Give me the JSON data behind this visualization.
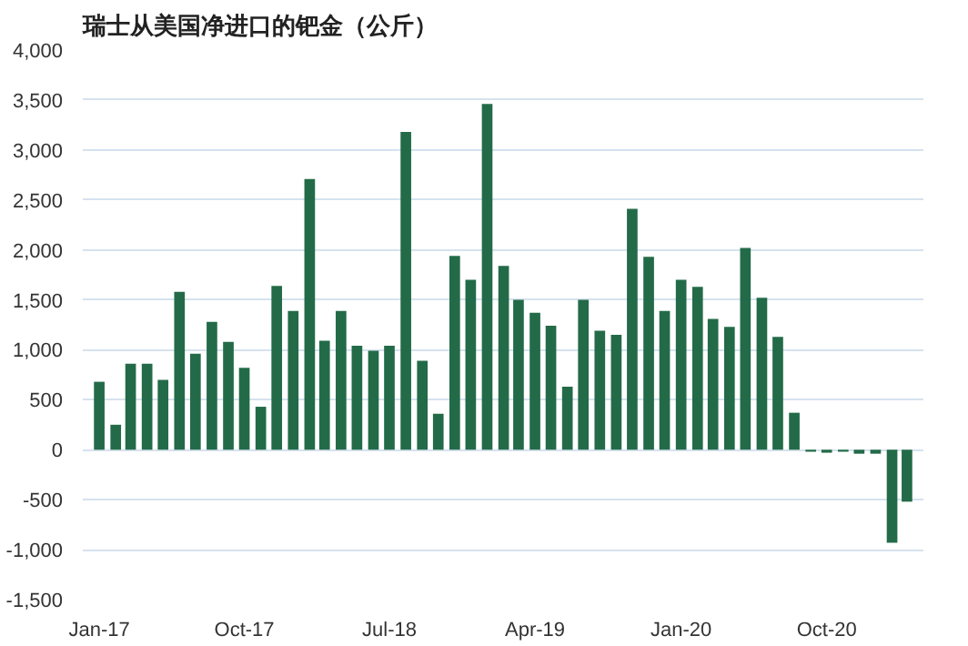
{
  "chart_data": {
    "type": "bar",
    "title": "瑞士从美国净进口的钯金（公斤）",
    "x": [
      "2017-01",
      "2017-02",
      "2017-03",
      "2017-04",
      "2017-05",
      "2017-06",
      "2017-07",
      "2017-08",
      "2017-09",
      "2017-10",
      "2017-11",
      "2017-12",
      "2018-01",
      "2018-02",
      "2018-03",
      "2018-04",
      "2018-05",
      "2018-06",
      "2018-07",
      "2018-08",
      "2018-09",
      "2018-10",
      "2018-11",
      "2018-12",
      "2019-01",
      "2019-02",
      "2019-03",
      "2019-04",
      "2019-05",
      "2019-06",
      "2019-07",
      "2019-08",
      "2019-09",
      "2019-10",
      "2019-11",
      "2019-12",
      "2020-01",
      "2020-02",
      "2020-03",
      "2020-04",
      "2020-05",
      "2020-06",
      "2020-07",
      "2020-08",
      "2020-09",
      "2020-10",
      "2020-11",
      "2020-12",
      "2021-01",
      "2021-02",
      "2021-03"
    ],
    "values": [
      680,
      250,
      860,
      860,
      700,
      1580,
      960,
      1280,
      1080,
      820,
      430,
      1640,
      1390,
      2710,
      1090,
      1390,
      1040,
      990,
      1040,
      3180,
      890,
      360,
      1940,
      1700,
      3460,
      1840,
      1500,
      1370,
      1240,
      630,
      1500,
      1190,
      1150,
      2410,
      1930,
      1390,
      1700,
      1630,
      1310,
      1230,
      2020,
      1520,
      1130,
      370,
      -20,
      -30,
      -20,
      -40,
      -40,
      -930,
      -520
    ],
    "color": "#236b48",
    "xlim": [
      "2016-12-01",
      "2021-04-01"
    ],
    "xticks": [
      {
        "value": "2017-01",
        "label": "Jan-17"
      },
      {
        "value": "2017-10",
        "label": "Oct-17"
      },
      {
        "value": "2018-07",
        "label": "Jul-18"
      },
      {
        "value": "2019-04",
        "label": "Apr-19"
      },
      {
        "value": "2020-01",
        "label": "Jan-20"
      },
      {
        "value": "2020-10",
        "label": "Oct-20"
      }
    ],
    "ylim": [
      -1500,
      4000
    ],
    "yticks": [
      {
        "value": -1500,
        "label": "-1,500"
      },
      {
        "value": -1000,
        "label": "-1,000"
      },
      {
        "value": -500,
        "label": "-500"
      },
      {
        "value": 0,
        "label": "0"
      },
      {
        "value": 500,
        "label": "500"
      },
      {
        "value": 1000,
        "label": "1,000"
      },
      {
        "value": 1500,
        "label": "1,500"
      },
      {
        "value": 2000,
        "label": "2,000"
      },
      {
        "value": 2500,
        "label": "2,500"
      },
      {
        "value": 3000,
        "label": "3,000"
      },
      {
        "value": 3500,
        "label": "3,500"
      },
      {
        "value": 4000,
        "label": "4,000"
      }
    ],
    "grid": "y"
  }
}
